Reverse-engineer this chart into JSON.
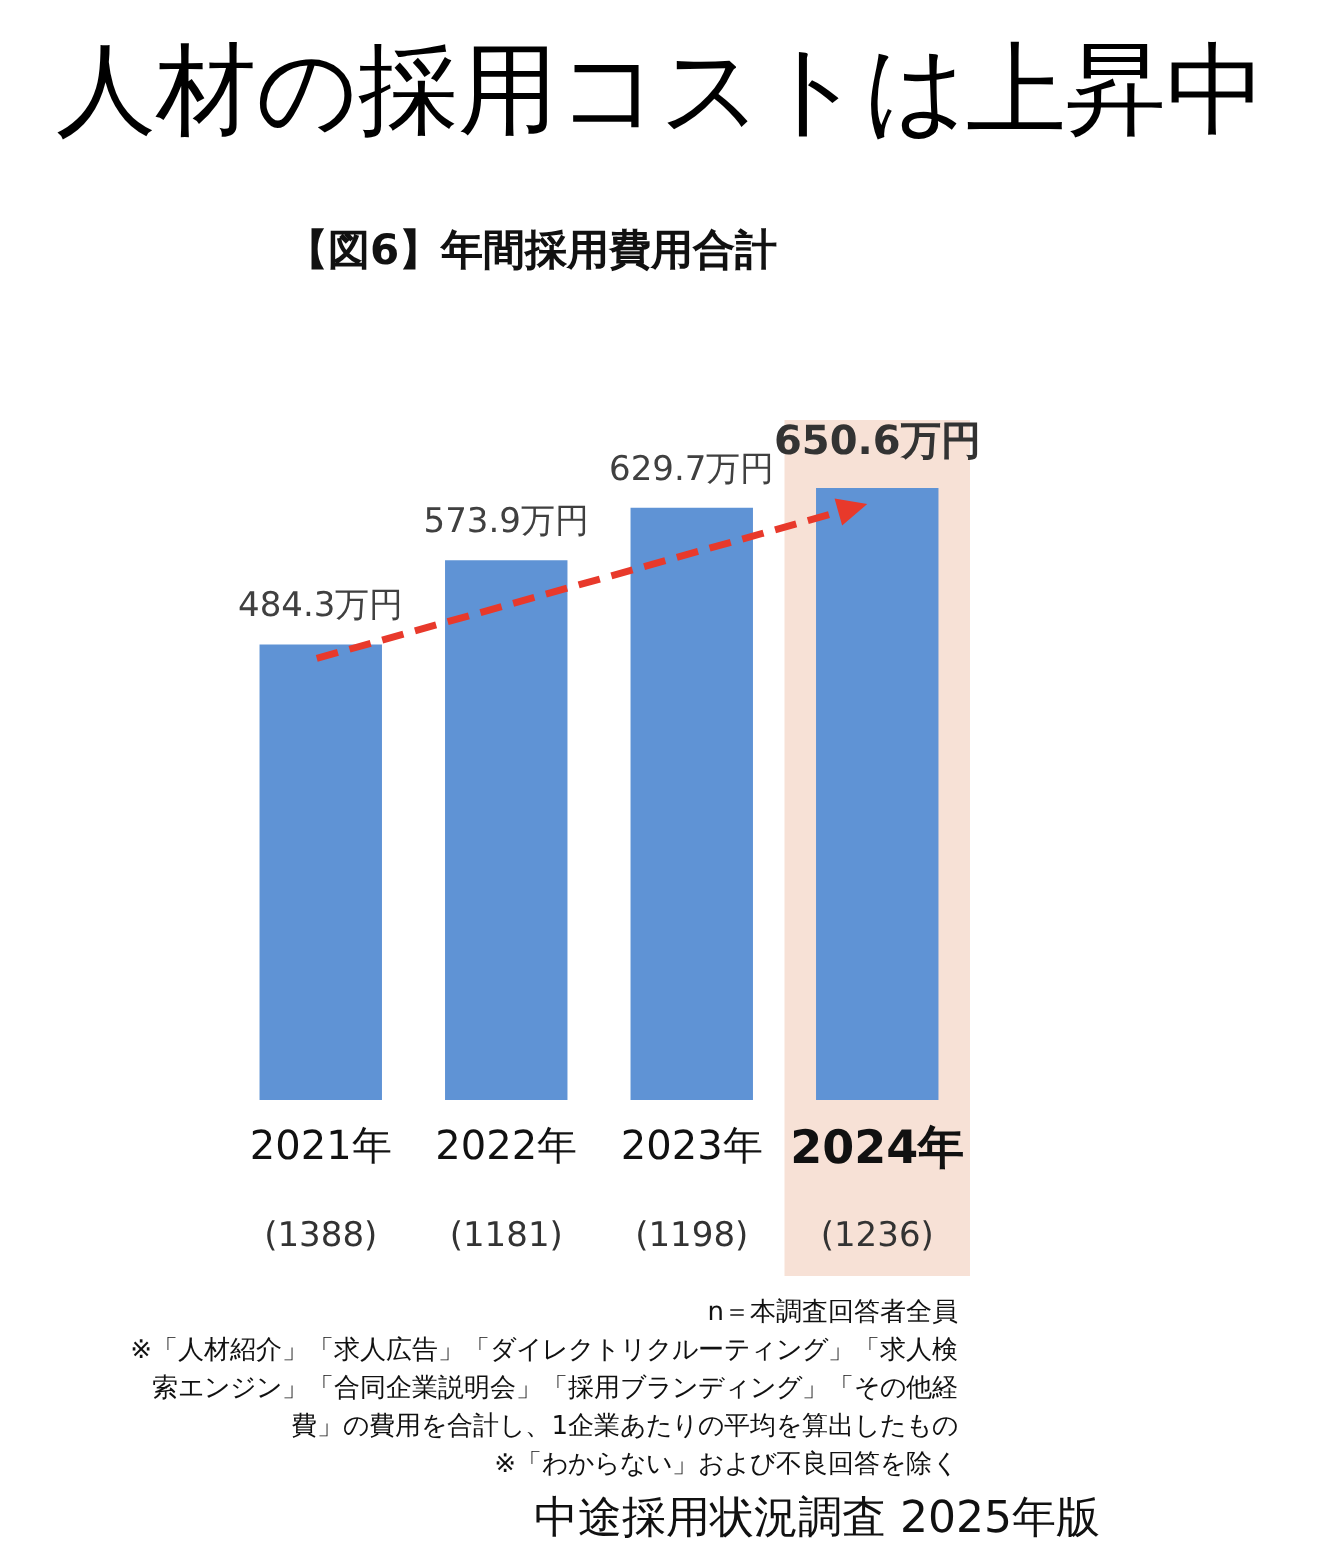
{
  "chart_data": {
    "type": "bar",
    "title": "人材の採用コストは上昇中",
    "subtitle": "【図6】年間採用費用合計",
    "categories": [
      "2021年",
      "2022年",
      "2023年",
      "2024年"
    ],
    "values": [
      484.3,
      573.9,
      629.7,
      650.6
    ],
    "color": "#5f93d5",
    "value_labels": [
      "484.3万円",
      "573.9万円",
      "629.7万円",
      "650.6万円"
    ],
    "tick_labels": "x",
    "bands": [
      {
        "axis": "x",
        "from": "2024年",
        "to": "2024年",
        "color": "#f7e1d6"
      }
    ],
    "annotations": [
      "(1388)",
      "(1181)",
      "(1198)",
      "(1236)",
      "n＝本調査回答者全員",
      "※「人材紹介」「求人広告」「ダイレクトリクルーティング」「求人検索エンジン」「合同企業説明会」「採用ブランディング」「その他経費」の費用を合計し、1企業あたりの平均を算出したもの",
      "※「わからない」および不良回答を除く",
      "中途採用状況調査 2025年版"
    ]
  }
}
